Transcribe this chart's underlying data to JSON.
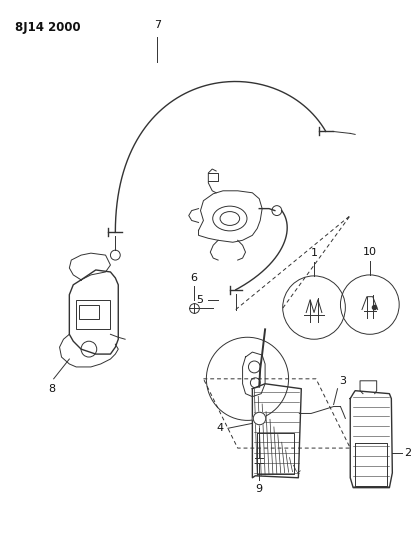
{
  "title": "8J14 2000",
  "bg_color": "#ffffff",
  "line_color": "#333333",
  "label_color": "#111111",
  "fig_width": 4.15,
  "fig_height": 5.33,
  "dpi": 100
}
